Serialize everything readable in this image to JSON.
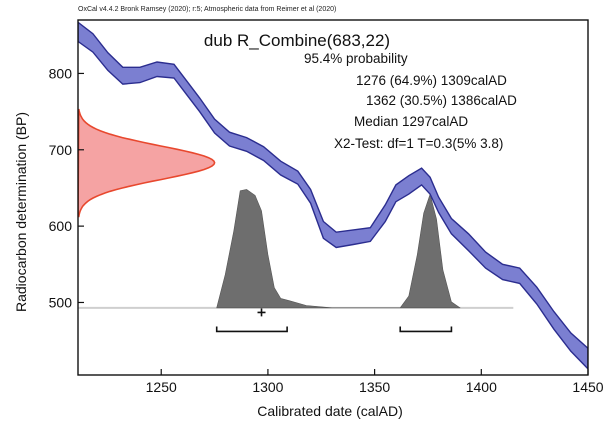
{
  "header_text": "OxCal v4.4.2 Bronk Ramsey (2020); r:5; Atmospheric data from Reimer et al (2020)",
  "chart_data": {
    "type": "area",
    "title": "dub R_Combine(683,22)",
    "xlabel": "Calibrated date (calAD)",
    "ylabel": "Radiocarbon determination (BP)",
    "xlim": [
      1211,
      1450
    ],
    "ylim": [
      405,
      870
    ],
    "x_ticks": [
      1250,
      1300,
      1350,
      1400,
      1450
    ],
    "y_ticks": [
      500,
      600,
      700,
      800
    ],
    "grid": false,
    "info_lines": [
      "95.4% probability",
      "1276 (64.9%) 1309calAD",
      "1362 (30.5%) 1386calAD",
      "Median 1297calAD",
      "X2-Test: df=1 T=0.3(5% 3.8)"
    ],
    "calibration_curve": {
      "color": "#7b7fd1",
      "x": [
        1211,
        1218,
        1225,
        1232,
        1240,
        1248,
        1256,
        1262,
        1268,
        1275,
        1282,
        1290,
        1298,
        1306,
        1314,
        1320,
        1326,
        1332,
        1340,
        1348,
        1355,
        1360,
        1366,
        1372,
        1376,
        1380,
        1386,
        1394,
        1402,
        1410,
        1418,
        1426,
        1434,
        1442,
        1450
      ],
      "upper": [
        867,
        852,
        827,
        808,
        808,
        815,
        812,
        790,
        768,
        740,
        723,
        716,
        704,
        685,
        672,
        648,
        606,
        592,
        595,
        598,
        628,
        654,
        666,
        676,
        664,
        638,
        610,
        590,
        566,
        550,
        545,
        520,
        488,
        460,
        440
      ],
      "lower": [
        842,
        828,
        804,
        786,
        788,
        796,
        794,
        772,
        750,
        722,
        705,
        698,
        686,
        667,
        655,
        630,
        584,
        572,
        576,
        580,
        606,
        632,
        642,
        654,
        642,
        618,
        590,
        568,
        545,
        530,
        525,
        498,
        465,
        436,
        413
      ]
    },
    "radiocarbon_distribution": {
      "color": "#f5a3a3",
      "edge_color": "#e8482e",
      "mean_bp": 683,
      "sd_bp": 22,
      "max_date": 1275
    },
    "calibrated_distribution": {
      "color": "#6e6e6e",
      "baseline_bp": 493,
      "baseline_range": [
        1211,
        1415
      ],
      "x": [
        1276,
        1280,
        1284,
        1287,
        1290,
        1294,
        1297,
        1300,
        1303,
        1306,
        1310,
        1318,
        1330,
        1362,
        1366,
        1370,
        1373,
        1376,
        1379,
        1382,
        1386,
        1390
      ],
      "peak": [
        0,
        0.28,
        0.65,
        0.99,
        1.0,
        0.95,
        0.82,
        0.45,
        0.17,
        0.08,
        0.06,
        0.02,
        0,
        0,
        0.1,
        0.45,
        0.8,
        0.96,
        0.75,
        0.32,
        0.05,
        0
      ],
      "peak_height_bp": 155
    },
    "ranges_95": [
      [
        1276,
        1309
      ],
      [
        1362,
        1386
      ]
    ],
    "ranges_bar_bp": 462,
    "median": 1297,
    "median_marker_bp": 487
  }
}
